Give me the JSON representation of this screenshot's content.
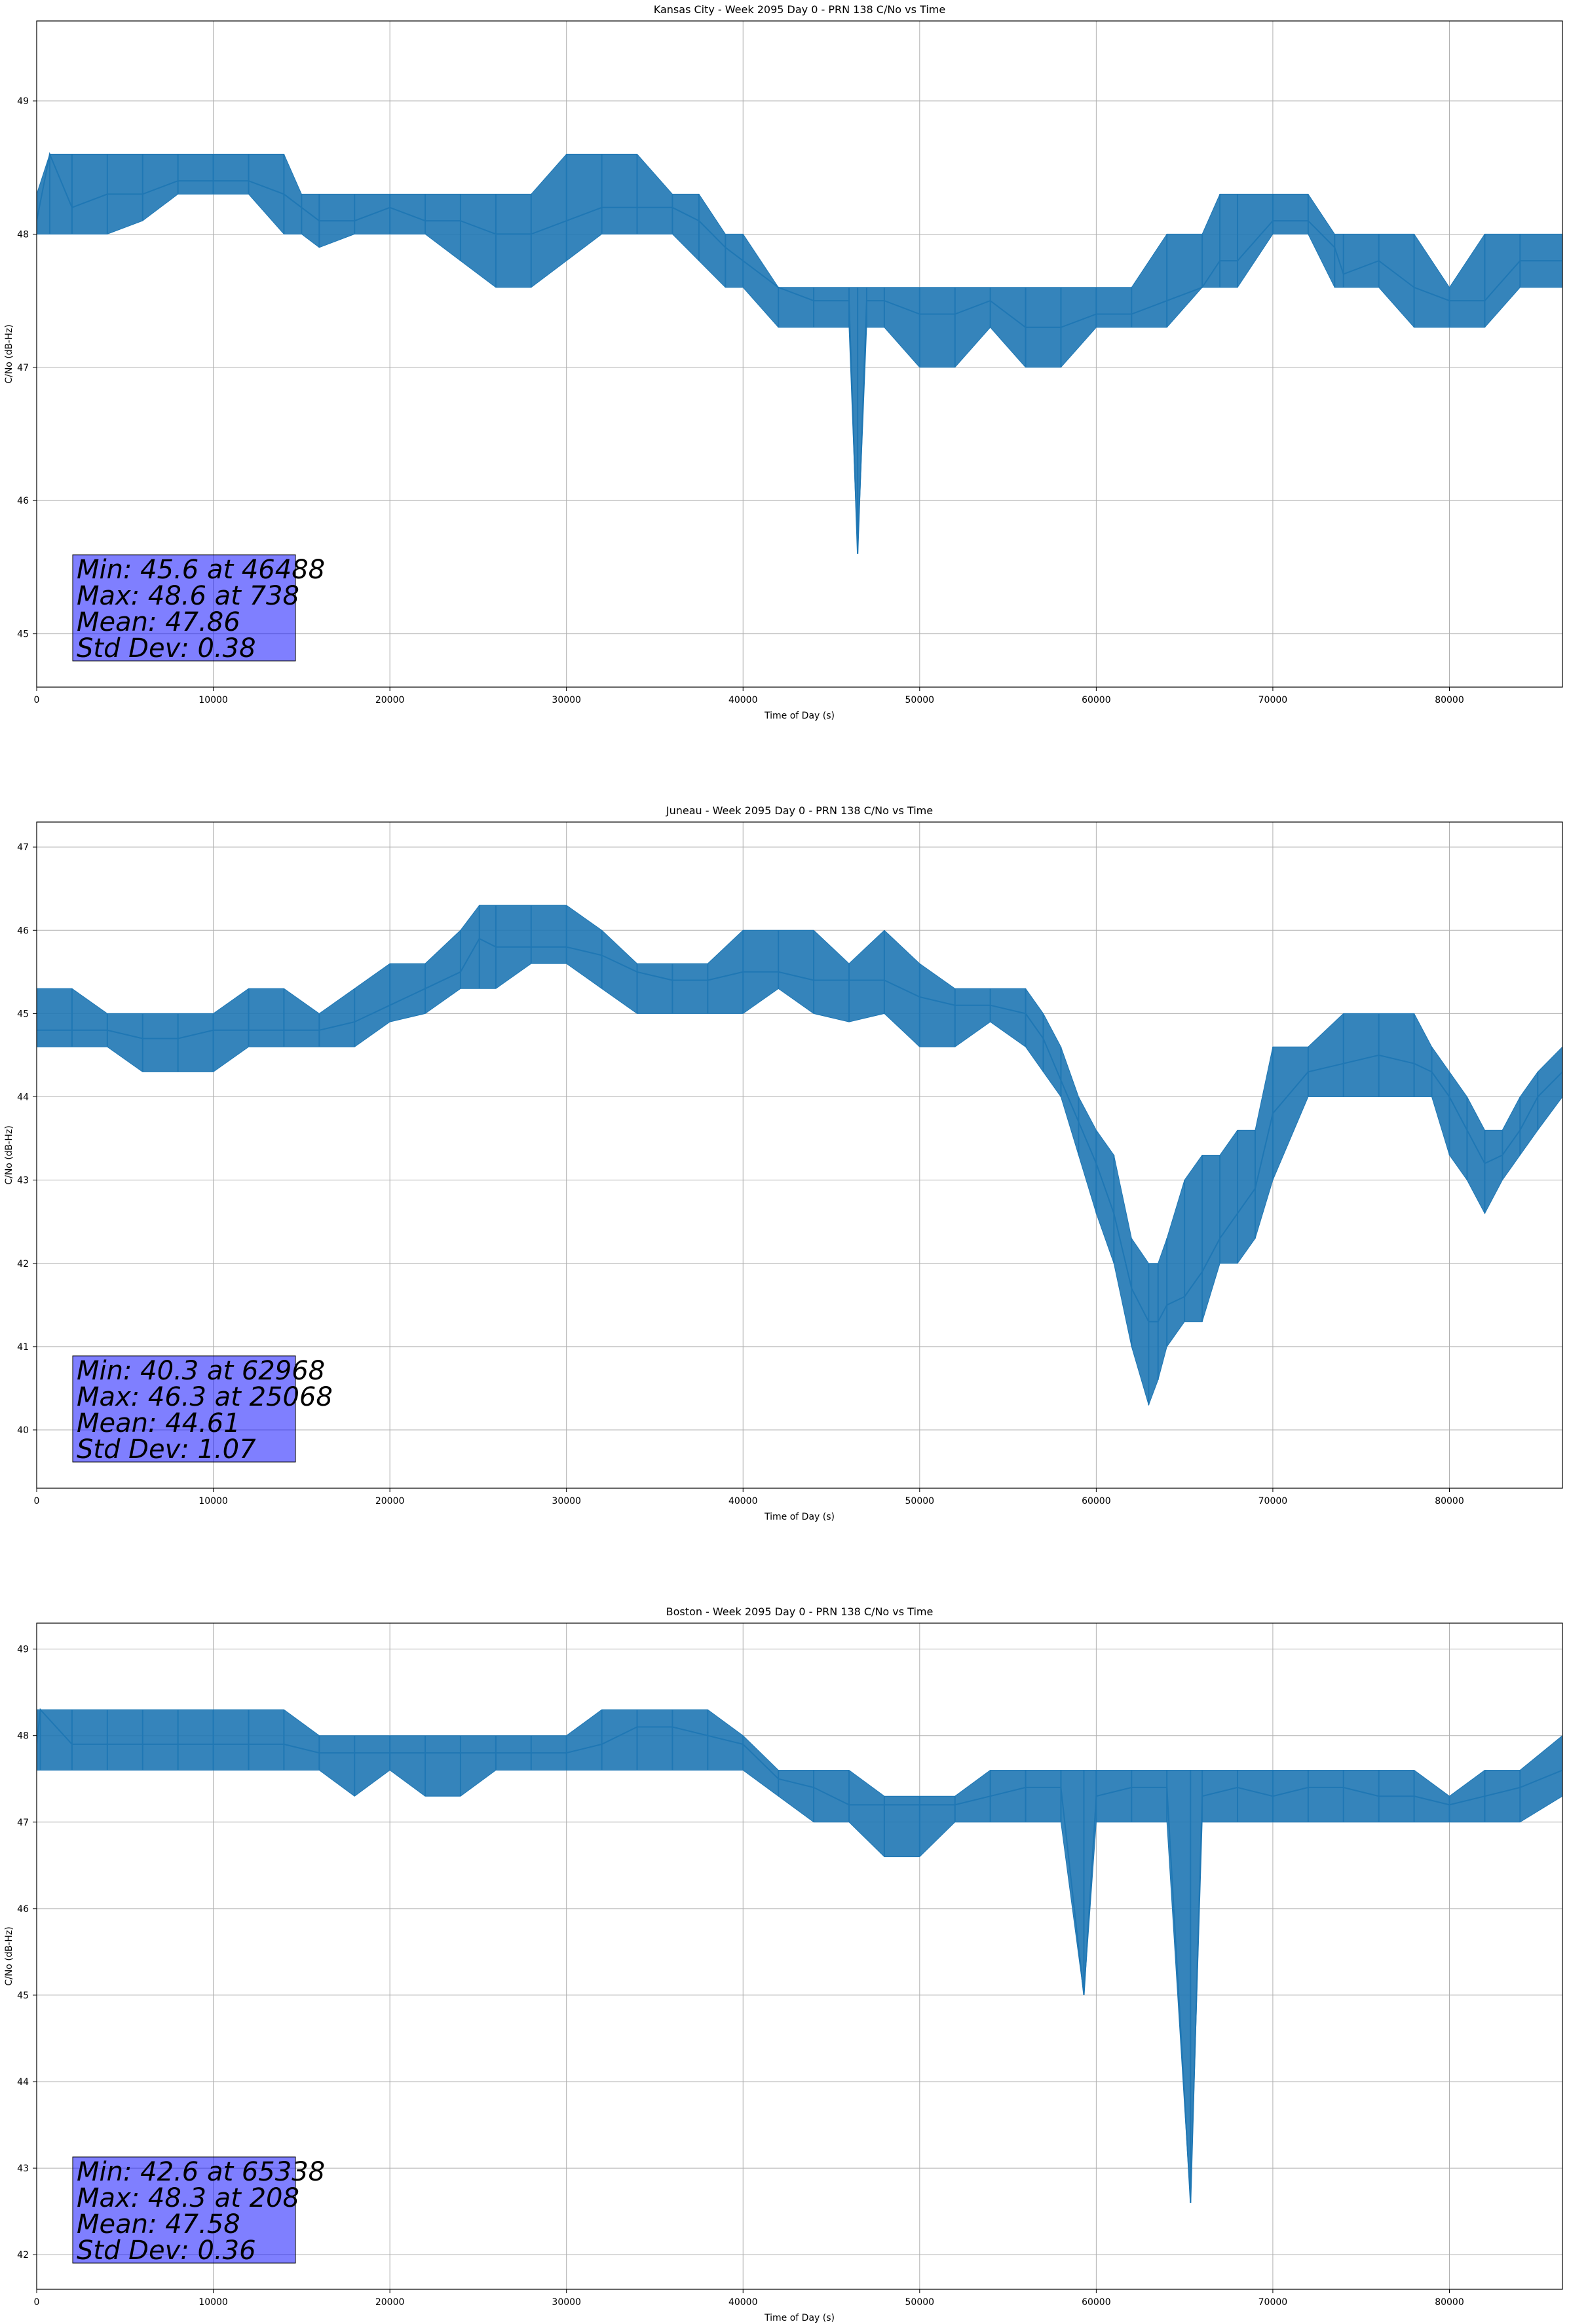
{
  "chart_data": [
    {
      "type": "line",
      "title": "Kansas City - Week 2095 Day 0 - PRN 138 C/No vs Time",
      "xlabel": "Time of Day (s)",
      "ylabel": "C/No (dB-Hz)",
      "xlim": [
        0,
        86400
      ],
      "ylim": [
        44.6,
        49.6
      ],
      "xticks": [
        0,
        10000,
        20000,
        30000,
        40000,
        50000,
        60000,
        70000,
        80000
      ],
      "yticks": [
        45,
        46,
        47,
        48,
        49
      ],
      "grid": true,
      "color": "#1f77b4",
      "stats": [
        "Min: 45.6 at 46488",
        "Max: 48.6 at 738",
        "Mean: 47.86",
        "Std Dev: 0.38"
      ],
      "series": [
        {
          "x": [
            0,
            738,
            2000,
            4000,
            6000,
            8000,
            10000,
            12000,
            14000,
            15000,
            16000,
            18000,
            20000,
            22000,
            24000,
            26000,
            28000,
            30000,
            32000,
            34000,
            36000,
            37500,
            39000,
            40000,
            42000,
            44000,
            46000,
            46488,
            47000,
            48000,
            50000,
            52000,
            54000,
            56000,
            58000,
            60000,
            62000,
            64000,
            66000,
            67000,
            68000,
            70000,
            72000,
            73500,
            74000,
            76000,
            78000,
            80000,
            82000,
            84000,
            86400
          ],
          "y": [
            48.1,
            48.6,
            48.2,
            48.3,
            48.3,
            48.4,
            48.4,
            48.4,
            48.3,
            48.2,
            48.1,
            48.1,
            48.2,
            48.1,
            48.1,
            48.0,
            48.0,
            48.1,
            48.2,
            48.2,
            48.2,
            48.1,
            47.9,
            47.8,
            47.6,
            47.5,
            47.5,
            45.6,
            47.5,
            47.5,
            47.4,
            47.4,
            47.5,
            47.3,
            47.3,
            47.4,
            47.4,
            47.5,
            47.6,
            47.8,
            47.8,
            48.1,
            48.1,
            47.9,
            47.7,
            47.8,
            47.6,
            47.5,
            47.5,
            47.8,
            47.8
          ],
          "lo": [
            48.0,
            48.0,
            48.0,
            48.0,
            48.1,
            48.3,
            48.3,
            48.3,
            48.0,
            48.0,
            47.9,
            48.0,
            48.0,
            48.0,
            47.8,
            47.6,
            47.6,
            47.8,
            48.0,
            48.0,
            48.0,
            47.8,
            47.6,
            47.6,
            47.3,
            47.3,
            47.3,
            45.6,
            47.3,
            47.3,
            47.0,
            47.0,
            47.3,
            47.0,
            47.0,
            47.3,
            47.3,
            47.3,
            47.6,
            47.6,
            47.6,
            48.0,
            48.0,
            47.6,
            47.6,
            47.6,
            47.3,
            47.3,
            47.3,
            47.6,
            47.6
          ],
          "hi": [
            48.3,
            48.6,
            48.6,
            48.6,
            48.6,
            48.6,
            48.6,
            48.6,
            48.6,
            48.3,
            48.3,
            48.3,
            48.3,
            48.3,
            48.3,
            48.3,
            48.3,
            48.6,
            48.6,
            48.6,
            48.3,
            48.3,
            48.0,
            48.0,
            47.6,
            47.6,
            47.6,
            47.6,
            47.6,
            47.6,
            47.6,
            47.6,
            47.6,
            47.6,
            47.6,
            47.6,
            47.6,
            48.0,
            48.0,
            48.3,
            48.3,
            48.3,
            48.3,
            48.0,
            48.0,
            48.0,
            48.0,
            47.6,
            48.0,
            48.0,
            48.0
          ]
        }
      ]
    },
    {
      "type": "line",
      "title": "Juneau - Week 2095 Day 0 - PRN 138 C/No vs Time",
      "xlabel": "Time of Day (s)",
      "ylabel": "C/No (dB-Hz)",
      "xlim": [
        0,
        86400
      ],
      "ylim": [
        39.3,
        47.3
      ],
      "xticks": [
        0,
        10000,
        20000,
        30000,
        40000,
        50000,
        60000,
        70000,
        80000
      ],
      "yticks": [
        40,
        41,
        42,
        43,
        44,
        45,
        46,
        47
      ],
      "grid": true,
      "color": "#1f77b4",
      "stats": [
        "Min: 40.3 at 62968",
        "Max: 46.3 at 25068",
        "Mean: 44.61",
        "Std Dev: 1.07"
      ],
      "series": [
        {
          "x": [
            0,
            2000,
            4000,
            6000,
            8000,
            10000,
            12000,
            14000,
            16000,
            18000,
            20000,
            22000,
            24000,
            25068,
            26000,
            28000,
            30000,
            32000,
            34000,
            36000,
            38000,
            40000,
            42000,
            44000,
            46000,
            48000,
            50000,
            52000,
            54000,
            56000,
            57000,
            58000,
            59000,
            60000,
            61000,
            62000,
            62968,
            63500,
            64000,
            65000,
            66000,
            67000,
            68000,
            69000,
            70000,
            72000,
            74000,
            76000,
            78000,
            79000,
            80000,
            81000,
            82000,
            83000,
            84000,
            85000,
            86400
          ],
          "y": [
            44.8,
            44.8,
            44.8,
            44.7,
            44.7,
            44.8,
            44.8,
            44.8,
            44.8,
            44.9,
            45.1,
            45.3,
            45.5,
            45.9,
            45.8,
            45.8,
            45.8,
            45.7,
            45.5,
            45.4,
            45.4,
            45.5,
            45.5,
            45.4,
            45.4,
            45.4,
            45.2,
            45.1,
            45.1,
            45.0,
            44.7,
            44.2,
            43.7,
            43.2,
            42.6,
            41.7,
            41.3,
            41.3,
            41.5,
            41.6,
            41.9,
            42.3,
            42.6,
            42.9,
            43.8,
            44.3,
            44.4,
            44.5,
            44.4,
            44.3,
            44.0,
            43.6,
            43.2,
            43.3,
            43.6,
            44.0,
            44.3
          ],
          "lo": [
            44.6,
            44.6,
            44.6,
            44.3,
            44.3,
            44.3,
            44.6,
            44.6,
            44.6,
            44.6,
            44.9,
            45.0,
            45.3,
            45.3,
            45.3,
            45.6,
            45.6,
            45.3,
            45.0,
            45.0,
            45.0,
            45.0,
            45.3,
            45.0,
            44.9,
            45.0,
            44.6,
            44.6,
            44.9,
            44.6,
            44.3,
            44.0,
            43.3,
            42.6,
            42.0,
            41.0,
            40.3,
            40.6,
            41.0,
            41.3,
            41.3,
            42.0,
            42.0,
            42.3,
            43.0,
            44.0,
            44.0,
            44.0,
            44.0,
            44.0,
            43.3,
            43.0,
            42.6,
            43.0,
            43.3,
            43.6,
            44.0
          ],
          "hi": [
            45.3,
            45.3,
            45.0,
            45.0,
            45.0,
            45.0,
            45.3,
            45.3,
            45.0,
            45.3,
            45.6,
            45.6,
            46.0,
            46.3,
            46.3,
            46.3,
            46.3,
            46.0,
            45.6,
            45.6,
            45.6,
            46.0,
            46.0,
            46.0,
            45.6,
            46.0,
            45.6,
            45.3,
            45.3,
            45.3,
            45.0,
            44.6,
            44.0,
            43.6,
            43.3,
            42.3,
            42.0,
            42.0,
            42.3,
            43.0,
            43.3,
            43.3,
            43.6,
            43.6,
            44.6,
            44.6,
            45.0,
            45.0,
            45.0,
            44.6,
            44.3,
            44.0,
            43.6,
            43.6,
            44.0,
            44.3,
            44.6
          ]
        }
      ]
    },
    {
      "type": "line",
      "title": "Boston - Week 2095 Day 0 - PRN 138 C/No vs Time",
      "xlabel": "Time of Day (s)",
      "ylabel": "C/No (dB-Hz)",
      "xlim": [
        0,
        86400
      ],
      "ylim": [
        41.6,
        49.3
      ],
      "xticks": [
        0,
        10000,
        20000,
        30000,
        40000,
        50000,
        60000,
        70000,
        80000
      ],
      "yticks": [
        42,
        43,
        44,
        45,
        46,
        47,
        48,
        49
      ],
      "grid": true,
      "color": "#1f77b4",
      "stats": [
        "Min: 42.6 at 65338",
        "Max: 48.3 at 208",
        "Mean: 47.58",
        "Std Dev: 0.36"
      ],
      "series": [
        {
          "x": [
            0,
            208,
            2000,
            4000,
            6000,
            8000,
            10000,
            12000,
            14000,
            16000,
            18000,
            20000,
            22000,
            24000,
            26000,
            28000,
            30000,
            32000,
            34000,
            36000,
            38000,
            40000,
            42000,
            44000,
            46000,
            48000,
            50000,
            52000,
            54000,
            56000,
            58000,
            59300,
            60000,
            62000,
            64000,
            65338,
            66000,
            68000,
            70000,
            72000,
            74000,
            76000,
            78000,
            80000,
            82000,
            84000,
            86400
          ],
          "y": [
            47.9,
            48.3,
            47.9,
            47.9,
            47.9,
            47.9,
            47.9,
            47.9,
            47.9,
            47.8,
            47.8,
            47.8,
            47.8,
            47.8,
            47.8,
            47.8,
            47.8,
            47.9,
            48.1,
            48.1,
            48.0,
            47.9,
            47.5,
            47.4,
            47.2,
            47.2,
            47.2,
            47.2,
            47.3,
            47.4,
            47.4,
            45.0,
            47.3,
            47.4,
            47.4,
            42.6,
            47.3,
            47.4,
            47.3,
            47.4,
            47.4,
            47.3,
            47.3,
            47.2,
            47.3,
            47.4,
            47.6
          ],
          "lo": [
            47.6,
            47.6,
            47.6,
            47.6,
            47.6,
            47.6,
            47.6,
            47.6,
            47.6,
            47.6,
            47.3,
            47.6,
            47.3,
            47.3,
            47.6,
            47.6,
            47.6,
            47.6,
            47.6,
            47.6,
            47.6,
            47.6,
            47.3,
            47.0,
            47.0,
            46.6,
            46.6,
            47.0,
            47.0,
            47.0,
            47.0,
            45.0,
            47.0,
            47.0,
            47.0,
            42.6,
            47.0,
            47.0,
            47.0,
            47.0,
            47.0,
            47.0,
            47.0,
            47.0,
            47.0,
            47.0,
            47.3
          ],
          "hi": [
            48.3,
            48.3,
            48.3,
            48.3,
            48.3,
            48.3,
            48.3,
            48.3,
            48.3,
            48.0,
            48.0,
            48.0,
            48.0,
            48.0,
            48.0,
            48.0,
            48.0,
            48.3,
            48.3,
            48.3,
            48.3,
            48.0,
            47.6,
            47.6,
            47.6,
            47.3,
            47.3,
            47.3,
            47.6,
            47.6,
            47.6,
            47.6,
            47.6,
            47.6,
            47.6,
            47.6,
            47.6,
            47.6,
            47.6,
            47.6,
            47.6,
            47.6,
            47.6,
            47.3,
            47.6,
            47.6,
            48.0
          ]
        }
      ]
    }
  ]
}
